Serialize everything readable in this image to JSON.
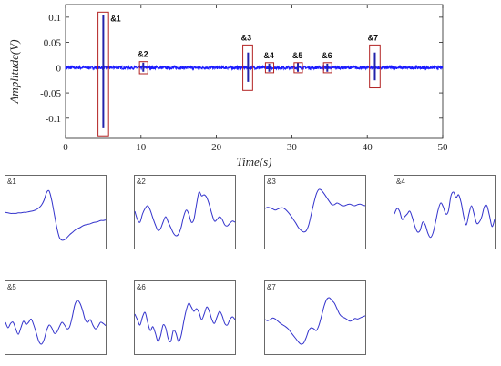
{
  "chart_data": [
    {
      "type": "line",
      "xlabel": "Time(s)",
      "ylabel": "Amplitude(V)",
      "xlim": [
        0,
        50
      ],
      "ylim": [
        -0.14,
        0.125
      ],
      "x_ticks": [
        "0",
        "10",
        "20",
        "30",
        "40",
        "50"
      ],
      "y_ticks": [
        "-0.1",
        "-0.05",
        "0",
        "0.05",
        "0.1"
      ],
      "x_tick_values": [
        0,
        10,
        20,
        30,
        40,
        50
      ],
      "y_tick_values": [
        -0.1,
        -0.05,
        0,
        0.05,
        0.1
      ],
      "line_color": "#1a1aff",
      "box_color": "#b22222",
      "noise_amplitude": 0.003,
      "events": [
        {
          "label": "&1",
          "t": 5.0,
          "y_min": -0.12,
          "y_max": 0.105,
          "t_range": [
            4.3,
            5.7
          ],
          "box_y": [
            -0.135,
            0.11
          ]
        },
        {
          "label": "&2",
          "t": 10.3,
          "y_min": -0.008,
          "y_max": 0.01,
          "t_range": [
            9.8,
            10.9
          ],
          "box_y": [
            -0.012,
            0.012
          ]
        },
        {
          "label": "&3",
          "t": 24.2,
          "y_min": -0.028,
          "y_max": 0.03,
          "t_range": [
            23.5,
            24.8
          ],
          "box_y": [
            -0.045,
            0.045
          ]
        },
        {
          "label": "&4",
          "t": 27.0,
          "y_min": -0.008,
          "y_max": 0.008,
          "t_range": [
            26.5,
            27.6
          ],
          "box_y": [
            -0.01,
            0.01
          ]
        },
        {
          "label": "&5",
          "t": 30.8,
          "y_min": -0.008,
          "y_max": 0.01,
          "t_range": [
            30.3,
            31.4
          ],
          "box_y": [
            -0.01,
            0.01
          ]
        },
        {
          "label": "&6",
          "t": 34.7,
          "y_min": -0.008,
          "y_max": 0.008,
          "t_range": [
            34.2,
            35.3
          ],
          "box_y": [
            -0.01,
            0.01
          ]
        },
        {
          "label": "&7",
          "t": 41.0,
          "y_min": -0.025,
          "y_max": 0.03,
          "t_range": [
            40.3,
            41.7
          ],
          "box_y": [
            -0.04,
            0.045
          ]
        }
      ]
    },
    {
      "type": "line",
      "panels": [
        {
          "label": "&1",
          "values": [
            0.58,
            0.57,
            0.56,
            0.56,
            0.56,
            0.57,
            0.57,
            0.58,
            0.58,
            0.59,
            0.6,
            0.61,
            0.63,
            0.66,
            0.71,
            0.8,
            0.94,
            0.97,
            0.8,
            0.55,
            0.3,
            0.12,
            0.07,
            0.08,
            0.12,
            0.17,
            0.21,
            0.25,
            0.28,
            0.3,
            0.33,
            0.35,
            0.36,
            0.37,
            0.39,
            0.4,
            0.41,
            0.43,
            0.43,
            0.44
          ]
        },
        {
          "label": "&2",
          "values": [
            0.6,
            0.45,
            0.4,
            0.55,
            0.65,
            0.7,
            0.62,
            0.48,
            0.35,
            0.25,
            0.28,
            0.4,
            0.5,
            0.4,
            0.3,
            0.2,
            0.15,
            0.18,
            0.3,
            0.5,
            0.62,
            0.55,
            0.4,
            0.45,
            0.72,
            0.95,
            0.88,
            0.9,
            0.85,
            0.72,
            0.55,
            0.42,
            0.45,
            0.5,
            0.45,
            0.35,
            0.33,
            0.38,
            0.42,
            0.4
          ]
        },
        {
          "label": "&3",
          "values": [
            0.65,
            0.67,
            0.66,
            0.64,
            0.62,
            0.64,
            0.66,
            0.66,
            0.63,
            0.58,
            0.52,
            0.45,
            0.38,
            0.3,
            0.25,
            0.22,
            0.24,
            0.35,
            0.55,
            0.75,
            0.92,
            1.0,
            0.98,
            0.92,
            0.85,
            0.78,
            0.72,
            0.72,
            0.75,
            0.73,
            0.7,
            0.7,
            0.72,
            0.73,
            0.71,
            0.7,
            0.72,
            0.73,
            0.71,
            0.7
          ]
        },
        {
          "label": "&4",
          "values": [
            0.55,
            0.65,
            0.6,
            0.45,
            0.5,
            0.55,
            0.6,
            0.48,
            0.32,
            0.22,
            0.25,
            0.4,
            0.35,
            0.2,
            0.12,
            0.2,
            0.4,
            0.62,
            0.75,
            0.68,
            0.55,
            0.6,
            0.88,
            0.95,
            0.85,
            0.9,
            0.75,
            0.5,
            0.35,
            0.55,
            0.7,
            0.55,
            0.38,
            0.4,
            0.5,
            0.68,
            0.7,
            0.52,
            0.32,
            0.45
          ]
        },
        {
          "label": "&5",
          "values": [
            0.5,
            0.4,
            0.48,
            0.5,
            0.38,
            0.28,
            0.4,
            0.52,
            0.46,
            0.5,
            0.56,
            0.45,
            0.3,
            0.15,
            0.1,
            0.18,
            0.35,
            0.45,
            0.4,
            0.3,
            0.32,
            0.42,
            0.5,
            0.45,
            0.38,
            0.42,
            0.6,
            0.82,
            0.9,
            0.85,
            0.72,
            0.55,
            0.5,
            0.55,
            0.45,
            0.38,
            0.42,
            0.5,
            0.48,
            0.44
          ]
        },
        {
          "label": "&6",
          "values": [
            0.65,
            0.55,
            0.45,
            0.6,
            0.68,
            0.5,
            0.35,
            0.42,
            0.3,
            0.15,
            0.25,
            0.45,
            0.4,
            0.2,
            0.15,
            0.35,
            0.3,
            0.15,
            0.25,
            0.5,
            0.72,
            0.85,
            0.78,
            0.7,
            0.75,
            0.68,
            0.55,
            0.65,
            0.78,
            0.7,
            0.55,
            0.48,
            0.6,
            0.7,
            0.62,
            0.48,
            0.45,
            0.55,
            0.6,
            0.55
          ]
        },
        {
          "label": "&7",
          "values": [
            0.55,
            0.53,
            0.55,
            0.58,
            0.56,
            0.52,
            0.48,
            0.45,
            0.42,
            0.38,
            0.32,
            0.26,
            0.2,
            0.14,
            0.1,
            0.12,
            0.22,
            0.35,
            0.4,
            0.38,
            0.35,
            0.45,
            0.62,
            0.8,
            0.92,
            0.95,
            0.9,
            0.85,
            0.75,
            0.65,
            0.6,
            0.58,
            0.55,
            0.52,
            0.54,
            0.57,
            0.56,
            0.58,
            0.6,
            0.62
          ]
        }
      ]
    }
  ]
}
